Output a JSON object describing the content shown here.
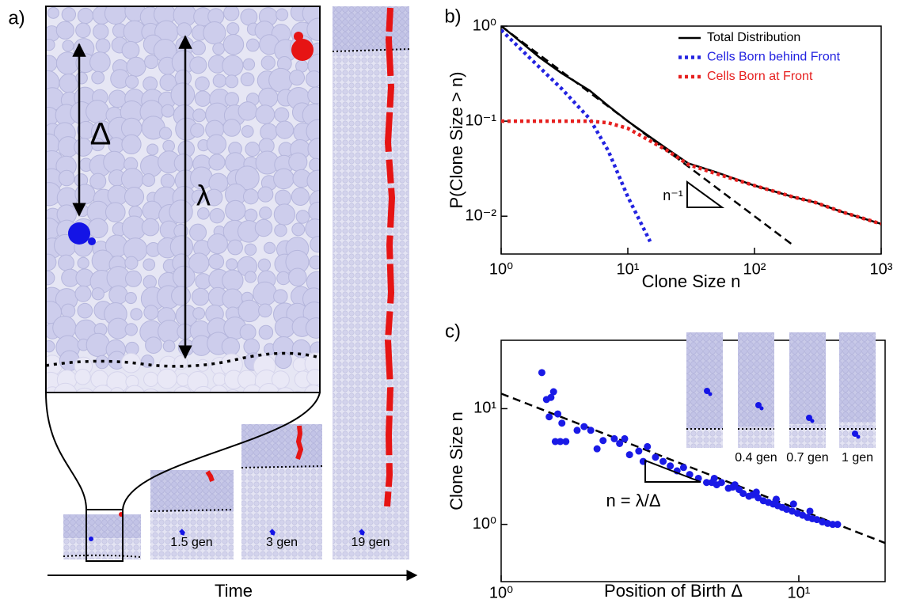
{
  "panel_a": {
    "label": "a)",
    "delta": "Δ",
    "lambda": "λ",
    "snapshot_labels": [
      "1.5 gen",
      "3 gen",
      "19 gen"
    ],
    "time_label": "Time"
  },
  "chart_data": [
    {
      "type": "line",
      "panel_label": "b)",
      "x_label": "Clone Size n",
      "y_label": "P(Clone Size > n)",
      "log_x": true,
      "log_y": true,
      "xlim": [
        1,
        1000
      ],
      "ylim": [
        0.004,
        1
      ],
      "xticks": [
        {
          "value": 1,
          "label": "10⁰"
        },
        {
          "value": 10,
          "label": "10¹"
        },
        {
          "value": 100,
          "label": "10²"
        },
        {
          "value": 1000,
          "label": "10³"
        }
      ],
      "yticks": [
        {
          "value": 0.01,
          "label": "10⁻²"
        },
        {
          "value": 0.1,
          "label": "10⁻¹"
        },
        {
          "value": 1,
          "label": "10⁰"
        }
      ],
      "legend": "upper right",
      "series": [
        {
          "name": "Total Distribution",
          "color": "#000000",
          "style": "solid",
          "x": [
            1,
            2,
            3,
            5,
            7,
            10,
            15,
            20,
            30,
            50,
            100,
            200,
            300,
            500,
            1000
          ],
          "values": [
            1.01,
            0.47,
            0.32,
            0.21,
            0.145,
            0.1,
            0.068,
            0.052,
            0.036,
            0.029,
            0.021,
            0.016,
            0.014,
            0.011,
            0.0083
          ]
        },
        {
          "name": "Cells Born behind Front",
          "color": "#2323e0",
          "style": "dotted",
          "x": [
            1,
            2,
            3,
            5,
            7,
            10,
            15
          ],
          "values": [
            0.91,
            0.37,
            0.22,
            0.106,
            0.049,
            0.016,
            0.0054
          ]
        },
        {
          "name": "Cells Born at Front",
          "color": "#e6201f",
          "style": "dotted",
          "x": [
            1,
            2,
            3,
            5,
            7,
            10,
            15,
            20,
            30,
            50,
            100,
            200,
            300,
            500,
            1000
          ],
          "values": [
            0.1,
            0.1,
            0.1,
            0.1,
            0.096,
            0.084,
            0.062,
            0.05,
            0.035,
            0.028,
            0.021,
            0.016,
            0.014,
            0.011,
            0.0083
          ]
        }
      ],
      "reference_line": {
        "color": "#000000",
        "style": "dashed",
        "x": [
          1,
          200
        ],
        "values": [
          1,
          0.005
        ]
      },
      "annotation": "n⁻¹"
    },
    {
      "type": "scatter",
      "panel_label": "c)",
      "x_label": "Position of Birth Δ",
      "y_label": "Clone Size n",
      "log_x": true,
      "log_y": true,
      "xlim": [
        1,
        19.5
      ],
      "ylim": [
        0.32,
        39
      ],
      "xticks": [
        {
          "value": 1,
          "label": "10⁰"
        },
        {
          "value": 10,
          "label": "10¹"
        }
      ],
      "yticks": [
        {
          "value": 1,
          "label": "10⁰"
        },
        {
          "value": 10,
          "label": "10¹"
        }
      ],
      "color": "#1a1ae6",
      "x": [
        1.37,
        1.42,
        1.45,
        1.5,
        1.52,
        1.55,
        1.58,
        1.47,
        1.6,
        1.65,
        1.8,
        1.9,
        2.0,
        2.1,
        2.2,
        2.4,
        2.5,
        2.6,
        2.7,
        2.9,
        3.0,
        3.1,
        3.3,
        3.5,
        3.7,
        3.9,
        4.1,
        4.3,
        4.6,
        4.9,
        5.1,
        5.3,
        5.5,
        5.8,
        6.0,
        6.3,
        6.5,
        6.8,
        7.0,
        7.3,
        7.6,
        7.9,
        8.2,
        8.5,
        8.8,
        9.1,
        9.5,
        9.9,
        10.3,
        10.7,
        11.1,
        11.5,
        12.0,
        12.5,
        13.0,
        13.5,
        5.2,
        6.1,
        7.2,
        8.4,
        9.6,
        10.9
      ],
      "values": [
        20.5,
        12,
        8.5,
        14,
        5.2,
        9,
        5.2,
        12.5,
        7.5,
        5.2,
        6.5,
        7,
        6.5,
        4.5,
        5.3,
        5.5,
        5.0,
        5.5,
        4.0,
        4.3,
        3.5,
        4.7,
        3.8,
        3.5,
        3.2,
        2.9,
        3.1,
        2.7,
        2.5,
        2.3,
        2.3,
        2.2,
        2.3,
        2.05,
        2.1,
        2.0,
        1.85,
        1.75,
        1.8,
        1.7,
        1.6,
        1.55,
        1.5,
        1.45,
        1.4,
        1.35,
        1.3,
        1.25,
        1.2,
        1.15,
        1.12,
        1.1,
        1.05,
        1.02,
        1.0,
        1.0,
        2.5,
        2.2,
        1.9,
        1.65,
        1.5,
        1.3
      ],
      "fit_line": {
        "color": "#000000",
        "style": "dashed",
        "x": [
          1,
          19.5
        ],
        "values": [
          13.5,
          0.69
        ]
      },
      "annotation": "n = λ/Δ",
      "inset_labels": [
        "0.4 gen",
        "0.7 gen",
        "1 gen"
      ]
    }
  ]
}
